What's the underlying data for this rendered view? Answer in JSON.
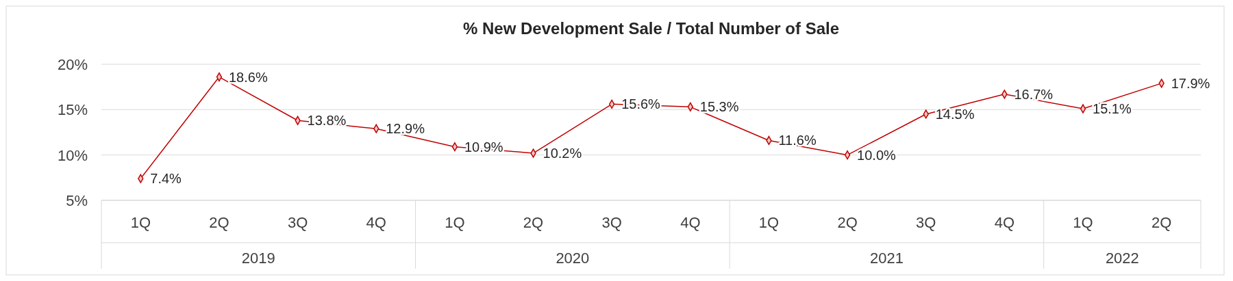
{
  "chart_data": {
    "type": "line",
    "title": "% New Development Sale / Total Number of Sale",
    "categories": [
      "1Q",
      "2Q",
      "3Q",
      "4Q",
      "1Q",
      "2Q",
      "3Q",
      "4Q",
      "1Q",
      "2Q",
      "3Q",
      "4Q",
      "1Q",
      "2Q"
    ],
    "series": [
      {
        "color": "#c00000",
        "values": [
          7.4,
          18.6,
          13.8,
          12.9,
          10.9,
          10.2,
          15.6,
          15.3,
          11.6,
          10.0,
          14.5,
          16.7,
          15.1,
          17.9
        ],
        "value_labels": [
          "7.4%",
          "18.6%",
          "13.8%",
          "12.9%",
          "10.9%",
          "10.2%",
          "15.6%",
          "15.3%",
          "11.6%",
          "10.0%",
          "14.5%",
          "16.7%",
          "15.1%",
          "17.9%"
        ]
      }
    ],
    "annotations": [
      "2019",
      "2020",
      "2021",
      "2022"
    ],
    "ylim": [
      5,
      20
    ],
    "yticks": [
      {
        "value": 5,
        "label": "5%"
      },
      {
        "value": 10,
        "label": "10%"
      },
      {
        "value": 15,
        "label": "15%"
      },
      {
        "value": 20,
        "label": "20%"
      }
    ],
    "grid": "y",
    "marker": "diamond",
    "line_style": "solid"
  }
}
